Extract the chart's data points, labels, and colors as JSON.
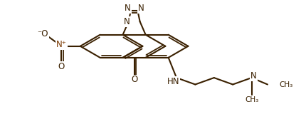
{
  "bg": "#ffffff",
  "bc": "#3a2000",
  "lw": 1.5,
  "fs": 8.5,
  "xlim": [
    -0.1,
    4.4
  ],
  "ylim": [
    -0.05,
    1.93
  ]
}
